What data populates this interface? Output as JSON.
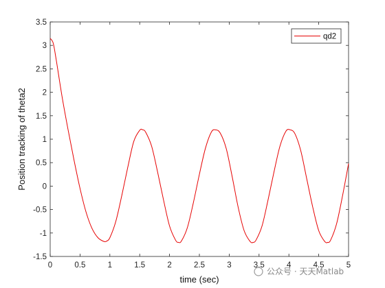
{
  "chart_data": {
    "type": "line",
    "xlabel": "time (sec)",
    "ylabel": "Position tracking of theta2",
    "xlim": [
      0,
      5
    ],
    "ylim": [
      -1.5,
      3.5
    ],
    "xticks": [
      "0",
      "0.5",
      "1",
      "1.5",
      "2",
      "2.5",
      "3",
      "3.5",
      "4",
      "4.5",
      "5"
    ],
    "yticks": [
      "-1.5",
      "-1",
      "-0.5",
      "0",
      "0.5",
      "1",
      "1.5",
      "2",
      "2.5",
      "3",
      "3.5"
    ],
    "grid": false,
    "legend_position": "top-right",
    "series": [
      {
        "name": "qd2",
        "color": "#e60000",
        "x": [
          0,
          0.05,
          0.1,
          0.2,
          0.3,
          0.4,
          0.5,
          0.6,
          0.7,
          0.8,
          0.9,
          0.95,
          1.0,
          1.1,
          1.2,
          1.3,
          1.4,
          1.5,
          1.55,
          1.6,
          1.7,
          1.8,
          1.9,
          2.0,
          2.1,
          2.15,
          2.2,
          2.3,
          2.4,
          2.5,
          2.6,
          2.7,
          2.77,
          2.85,
          2.95,
          3.05,
          3.15,
          3.25,
          3.35,
          3.4,
          3.45,
          3.55,
          3.65,
          3.75,
          3.85,
          3.95,
          4.02,
          4.1,
          4.2,
          4.3,
          4.4,
          4.5,
          4.6,
          4.65,
          4.7,
          4.8,
          4.9,
          5.0
        ],
        "y": [
          3.15,
          3.05,
          2.7,
          1.9,
          1.2,
          0.55,
          -0.05,
          -0.55,
          -0.9,
          -1.1,
          -1.18,
          -1.17,
          -1.1,
          -0.75,
          -0.2,
          0.4,
          0.95,
          1.19,
          1.2,
          1.15,
          0.85,
          0.3,
          -0.3,
          -0.85,
          -1.15,
          -1.2,
          -1.17,
          -0.88,
          -0.35,
          0.25,
          0.8,
          1.15,
          1.2,
          1.13,
          0.8,
          0.2,
          -0.45,
          -0.95,
          -1.18,
          -1.2,
          -1.15,
          -0.85,
          -0.3,
          0.3,
          0.85,
          1.17,
          1.2,
          1.12,
          0.75,
          0.15,
          -0.45,
          -0.95,
          -1.18,
          -1.2,
          -1.15,
          -0.8,
          -0.2,
          0.48
        ]
      }
    ]
  },
  "watermark": "公众号 · 天天Matlab"
}
